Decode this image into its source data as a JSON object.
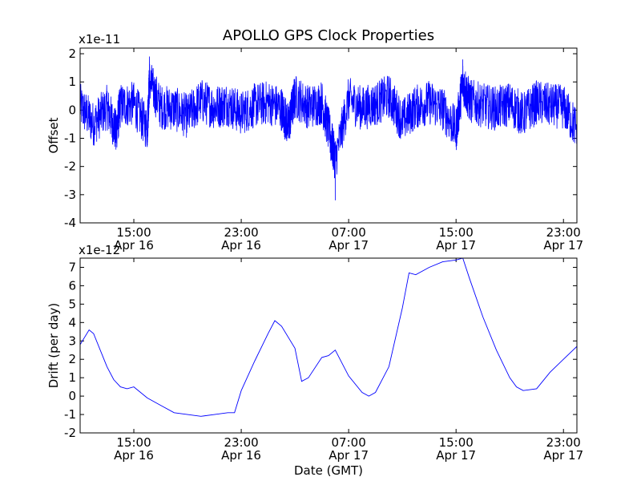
{
  "chart_data": [
    {
      "type": "line",
      "title": "APOLLO GPS Clock Properties",
      "ylabel": "Offset",
      "xlabel": "",
      "y_multiplier": "x1e-11",
      "ylim": [
        -4,
        2.2
      ],
      "yticks": [
        "2",
        "1",
        "0",
        "-1",
        "-2",
        "-3",
        "-4"
      ],
      "ytick_values": [
        2,
        1,
        0,
        -1,
        -2,
        -3,
        -4
      ],
      "xlim": [
        "2015-04-16 11:00",
        "2015-04-18 00:00"
      ],
      "xticks": [
        {
          "x": "2015-04-16 15:00",
          "time": "15:00",
          "date": "Apr 16"
        },
        {
          "x": "2015-04-16 23:00",
          "time": "23:00",
          "date": "Apr 16"
        },
        {
          "x": "2015-04-17 07:00",
          "time": "07:00",
          "date": "Apr 17"
        },
        {
          "x": "2015-04-17 15:00",
          "time": "15:00",
          "date": "Apr 17"
        },
        {
          "x": "2015-04-17 23:00",
          "time": "23:00",
          "date": "Apr 17"
        }
      ],
      "series_color": "#0000ff",
      "series_note": "high-frequency noisy offset trace",
      "x": [
        "2015-04-16 11:00",
        "2015-04-16 12:00",
        "2015-04-16 13:00",
        "2015-04-16 13:40",
        "2015-04-16 14:00",
        "2015-04-16 15:00",
        "2015-04-16 16:00",
        "2015-04-16 16:10",
        "2015-04-16 17:00",
        "2015-04-16 18:00",
        "2015-04-16 19:00",
        "2015-04-16 20:00",
        "2015-04-16 21:00",
        "2015-04-16 22:00",
        "2015-04-16 23:00",
        "2015-04-17 00:00",
        "2015-04-17 01:00",
        "2015-04-17 02:00",
        "2015-04-17 02:30",
        "2015-04-17 03:00",
        "2015-04-17 04:00",
        "2015-04-17 05:00",
        "2015-04-17 05:40",
        "2015-04-17 06:00",
        "2015-04-17 07:00",
        "2015-04-17 08:00",
        "2015-04-17 09:00",
        "2015-04-17 10:00",
        "2015-04-17 11:00",
        "2015-04-17 12:00",
        "2015-04-17 13:00",
        "2015-04-17 14:00",
        "2015-04-17 15:00",
        "2015-04-17 15:30",
        "2015-04-17 16:00",
        "2015-04-17 17:00",
        "2015-04-17 18:00",
        "2015-04-17 19:00",
        "2015-04-17 20:00",
        "2015-04-17 21:00",
        "2015-04-17 22:00",
        "2015-04-17 23:00",
        "2015-04-18 00:00"
      ],
      "values": [
        0.3,
        -0.9,
        0.2,
        -1.4,
        0.3,
        0.4,
        -1.2,
        1.9,
        0.2,
        0.1,
        -0.4,
        0.6,
        0.2,
        0.4,
        -0.2,
        0.3,
        0.5,
        0.1,
        -1.0,
        0.9,
        0.2,
        0.5,
        -1.8,
        -3.2,
        0.7,
        0.1,
        0.4,
        0.9,
        -0.7,
        0.2,
        0.5,
        0.1,
        -1.3,
        1.8,
        0.6,
        0.3,
        0.1,
        0.4,
        -0.3,
        0.5,
        0.3,
        0.2,
        -1.2
      ]
    },
    {
      "type": "line",
      "title": "",
      "ylabel": "Drift (per day)",
      "xlabel": "Date (GMT)",
      "y_multiplier": "x1e-12",
      "ylim": [
        -2,
        7.5
      ],
      "yticks": [
        "7",
        "6",
        "5",
        "4",
        "3",
        "2",
        "1",
        "0",
        "-1",
        "-2"
      ],
      "ytick_values": [
        7,
        6,
        5,
        4,
        3,
        2,
        1,
        0,
        -1,
        -2
      ],
      "xlim": [
        "2015-04-16 11:00",
        "2015-04-18 00:00"
      ],
      "xticks": [
        {
          "x": "2015-04-16 15:00",
          "time": "15:00",
          "date": "Apr 16"
        },
        {
          "x": "2015-04-16 23:00",
          "time": "23:00",
          "date": "Apr 16"
        },
        {
          "x": "2015-04-17 07:00",
          "time": "07:00",
          "date": "Apr 17"
        },
        {
          "x": "2015-04-17 15:00",
          "time": "15:00",
          "date": "Apr 17"
        },
        {
          "x": "2015-04-17 23:00",
          "time": "23:00",
          "date": "Apr 17"
        }
      ],
      "series_color": "#0000ff",
      "x": [
        "2015-04-16 11:00",
        "2015-04-16 11:40",
        "2015-04-16 12:00",
        "2015-04-16 12:30",
        "2015-04-16 13:00",
        "2015-04-16 13:30",
        "2015-04-16 14:00",
        "2015-04-16 14:30",
        "2015-04-16 15:00",
        "2015-04-16 16:00",
        "2015-04-16 17:00",
        "2015-04-16 18:00",
        "2015-04-16 19:00",
        "2015-04-16 20:00",
        "2015-04-16 21:00",
        "2015-04-16 22:00",
        "2015-04-16 22:30",
        "2015-04-16 23:00",
        "2015-04-17 00:00",
        "2015-04-17 01:00",
        "2015-04-17 01:30",
        "2015-04-17 02:00",
        "2015-04-17 03:00",
        "2015-04-17 03:30",
        "2015-04-17 04:00",
        "2015-04-17 05:00",
        "2015-04-17 05:30",
        "2015-04-17 06:00",
        "2015-04-17 07:00",
        "2015-04-17 08:00",
        "2015-04-17 08:30",
        "2015-04-17 09:00",
        "2015-04-17 10:00",
        "2015-04-17 11:00",
        "2015-04-17 11:30",
        "2015-04-17 12:00",
        "2015-04-17 13:00",
        "2015-04-17 14:00",
        "2015-04-17 15:00",
        "2015-04-17 15:30",
        "2015-04-17 16:00",
        "2015-04-17 17:00",
        "2015-04-17 18:00",
        "2015-04-17 19:00",
        "2015-04-17 19:30",
        "2015-04-17 20:00",
        "2015-04-17 21:00",
        "2015-04-17 22:00",
        "2015-04-17 23:00",
        "2015-04-18 00:00"
      ],
      "values": [
        2.8,
        3.6,
        3.4,
        2.5,
        1.6,
        0.9,
        0.5,
        0.4,
        0.5,
        -0.1,
        -0.5,
        -0.9,
        -1.0,
        -1.1,
        -1.0,
        -0.9,
        -0.9,
        0.3,
        1.9,
        3.4,
        4.1,
        3.8,
        2.6,
        0.8,
        1.0,
        2.1,
        2.2,
        2.5,
        1.1,
        0.2,
        0.0,
        0.2,
        1.6,
        4.8,
        6.7,
        6.6,
        7.0,
        7.3,
        7.4,
        7.5,
        6.4,
        4.3,
        2.5,
        1.0,
        0.5,
        0.3,
        0.4,
        1.3,
        2.0,
        2.7
      ]
    }
  ]
}
